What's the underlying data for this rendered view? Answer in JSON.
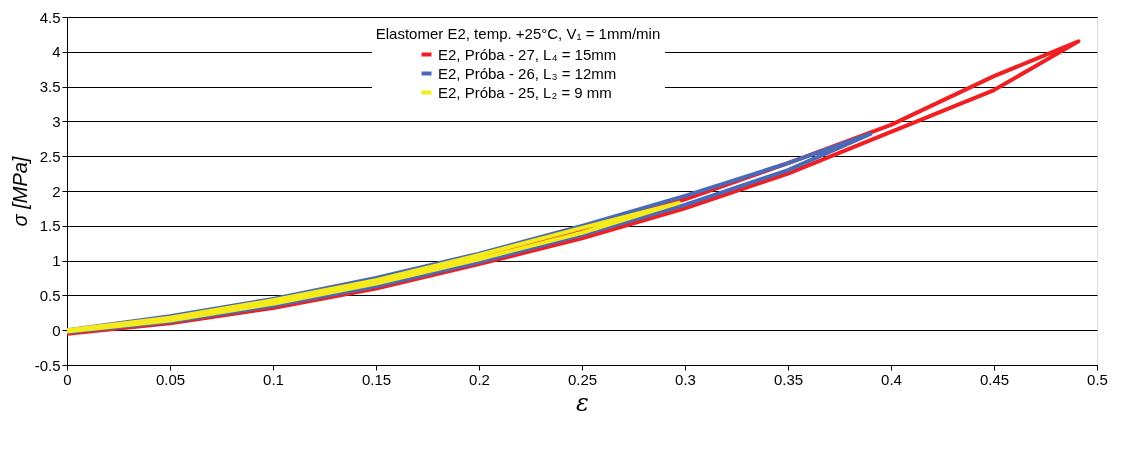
{
  "chart_data": {
    "type": "line",
    "xlabel": "ε",
    "ylabel": "σ [MPa]",
    "legend_title": "Elastomer E2, temp. +25°C, V₁ = 1mm/min",
    "legend": "top",
    "grid": "y",
    "marker": "none",
    "line_style": "solid",
    "xlim": [
      0,
      0.5
    ],
    "xticks": [
      0,
      0.05,
      0.1,
      0.15,
      0.2,
      0.25,
      0.3,
      0.35,
      0.4,
      0.45,
      0.5
    ],
    "ylim": [
      -0.5,
      4.5
    ],
    "yticks": [
      -0.5,
      0,
      0.5,
      1,
      1.5,
      2,
      2.5,
      3,
      3.5,
      4,
      4.5
    ],
    "series": [
      {
        "name": "E2, Próba - 27, L₄ = 15mm",
        "color": "#ee2024",
        "x": [
          0,
          0.05,
          0.1,
          0.15,
          0.2,
          0.25,
          0.3,
          0.35,
          0.4,
          0.45,
          0.491,
          0.45,
          0.4,
          0.35,
          0.3,
          0.25,
          0.2,
          0.15,
          0.1,
          0.05,
          0
        ],
        "values": [
          -0.05,
          0.1,
          0.32,
          0.6,
          0.95,
          1.32,
          1.75,
          2.25,
          2.85,
          3.45,
          4.15,
          3.65,
          2.95,
          2.4,
          1.88,
          1.45,
          1.05,
          0.7,
          0.42,
          0.17,
          -0.03
        ]
      },
      {
        "name": "E2, Próba - 26, L₃ = 12mm",
        "color": "#4a6ab8",
        "x": [
          0,
          0.05,
          0.1,
          0.15,
          0.2,
          0.25,
          0.3,
          0.35,
          0.39,
          0.35,
          0.3,
          0.25,
          0.2,
          0.15,
          0.1,
          0.05,
          0
        ],
        "values": [
          -0.03,
          0.12,
          0.35,
          0.63,
          0.98,
          1.37,
          1.8,
          2.3,
          2.82,
          2.4,
          1.93,
          1.5,
          1.1,
          0.75,
          0.45,
          0.2,
          0
        ]
      },
      {
        "name": "E2, Próba - 25, L₂ = 9 mm",
        "color": "#f5ea1a",
        "x": [
          0,
          0.05,
          0.1,
          0.15,
          0.2,
          0.25,
          0.297,
          0.25,
          0.2,
          0.15,
          0.1,
          0.05,
          0
        ],
        "values": [
          -0.02,
          0.14,
          0.38,
          0.67,
          1.02,
          1.4,
          1.83,
          1.47,
          1.08,
          0.72,
          0.43,
          0.18,
          0
        ]
      }
    ]
  }
}
